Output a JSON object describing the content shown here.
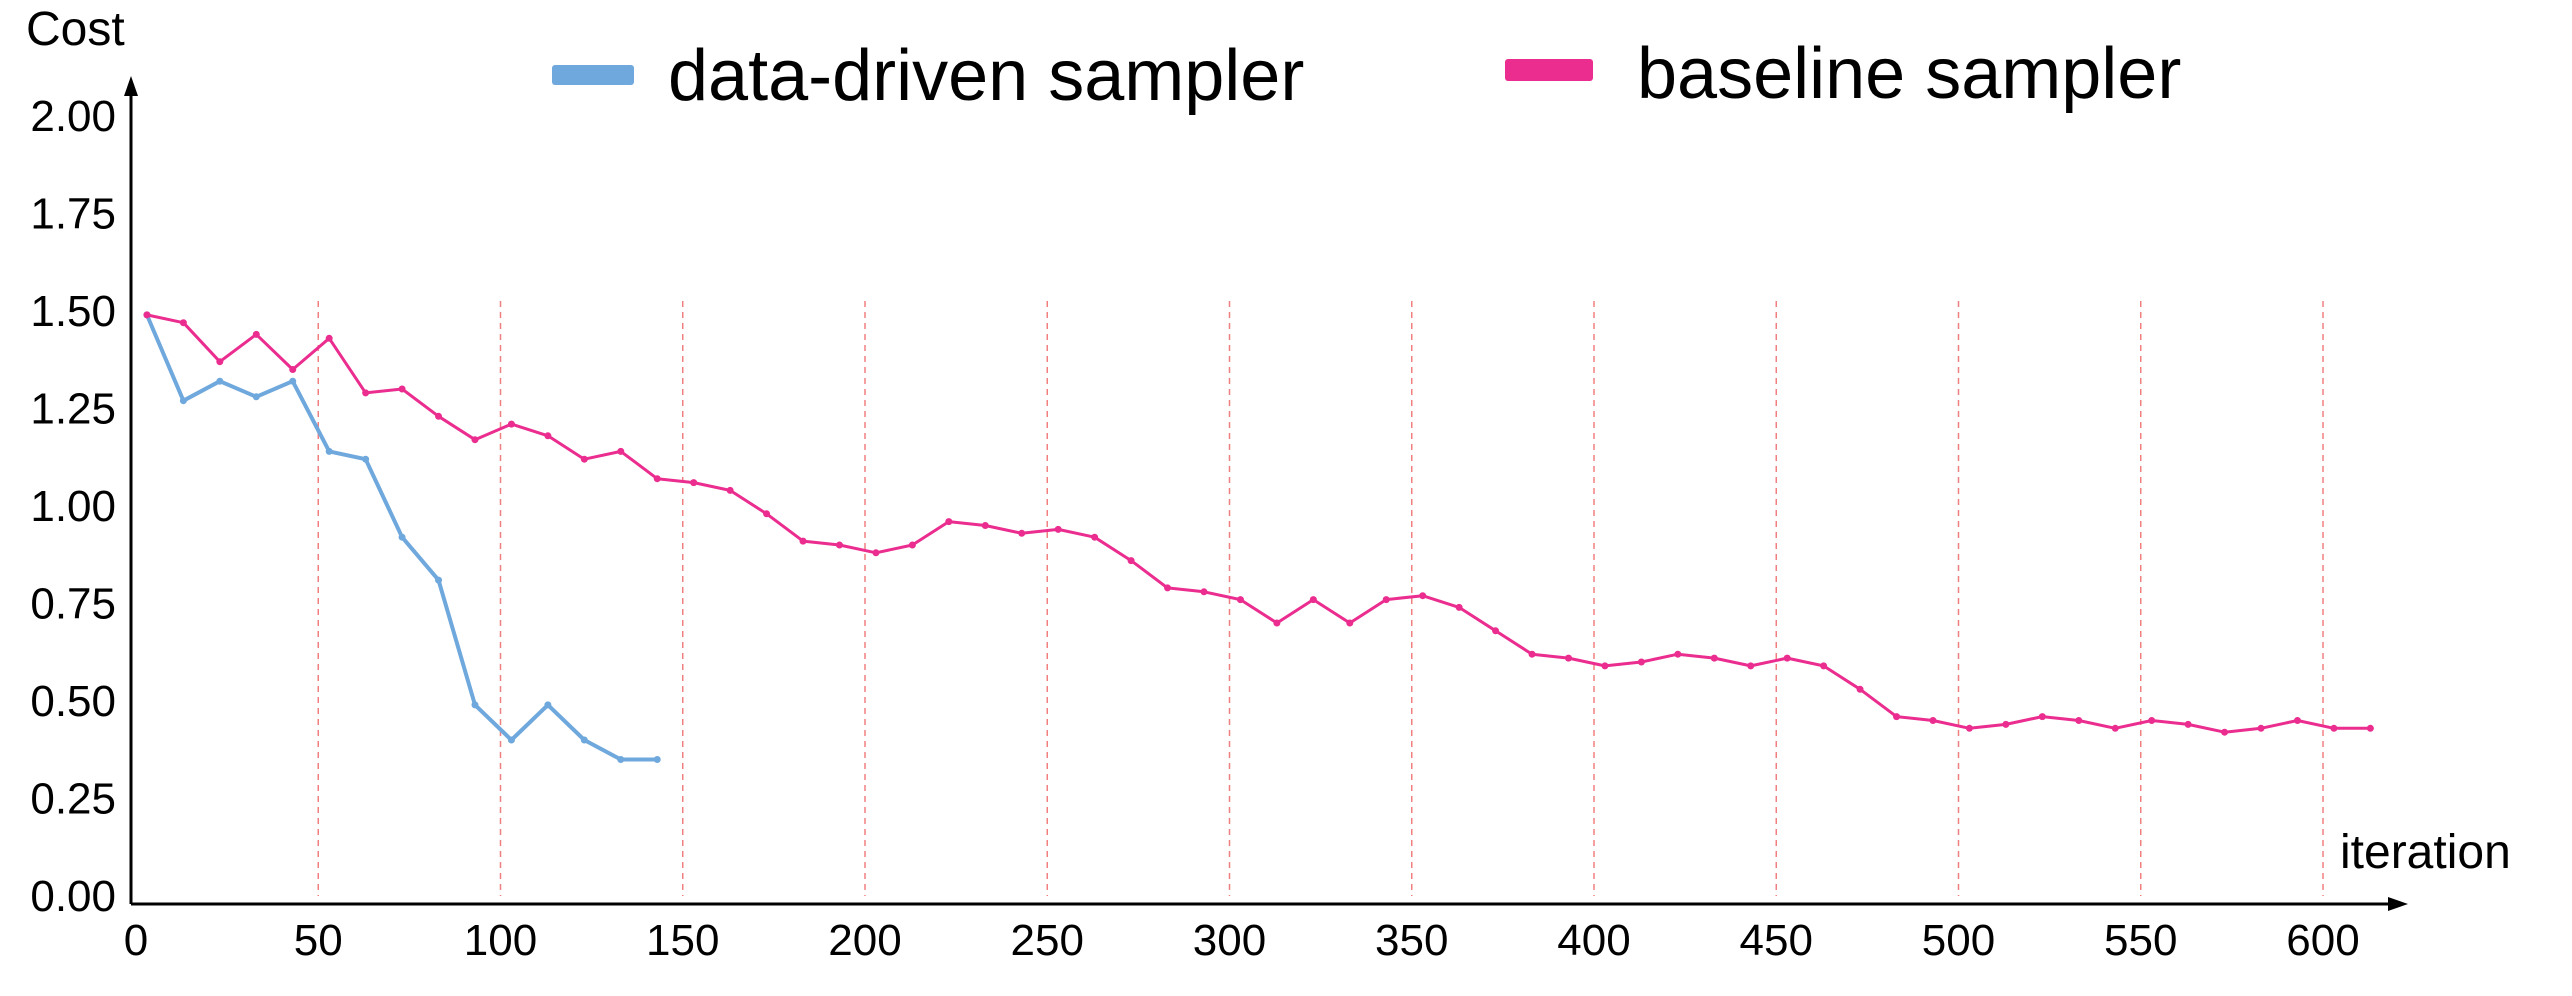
{
  "chart_data": {
    "type": "line",
    "title": "",
    "xlabel": "iteration",
    "ylabel": "Cost",
    "xlim": [
      0,
      620
    ],
    "ylim": [
      0,
      2.0
    ],
    "x_ticks": [
      "0",
      "50",
      "100",
      "150",
      "200",
      "250",
      "300",
      "350",
      "400",
      "450",
      "500",
      "550",
      "600"
    ],
    "y_ticks": [
      "0.00",
      "0.25",
      "0.50",
      "0.75",
      "1.00",
      "1.25",
      "1.50",
      "1.75",
      "2.00"
    ],
    "grid": "vertical dashed lines at x = 50, 100, ..., 600",
    "legend_position": "top",
    "series": [
      {
        "name": "data-driven sampler",
        "color": "#6fa8dc",
        "x": [
          3,
          13,
          23,
          33,
          43,
          53,
          63,
          73,
          83,
          93,
          103,
          113,
          123,
          133,
          143
        ],
        "y": [
          1.49,
          1.27,
          1.32,
          1.28,
          1.32,
          1.14,
          1.12,
          0.92,
          0.81,
          0.49,
          0.4,
          0.49,
          0.4,
          0.35,
          0.35
        ]
      },
      {
        "name": "baseline sampler",
        "color": "#ea2d8f",
        "x": [
          3,
          13,
          23,
          33,
          43,
          53,
          63,
          73,
          83,
          93,
          103,
          113,
          123,
          133,
          143,
          153,
          163,
          173,
          183,
          193,
          203,
          213,
          223,
          233,
          243,
          253,
          263,
          273,
          283,
          293,
          303,
          313,
          323,
          333,
          343,
          353,
          363,
          373,
          383,
          393,
          403,
          413,
          423,
          433,
          443,
          453,
          463,
          473,
          483,
          493,
          503,
          513,
          523,
          533,
          543,
          553,
          563,
          573,
          583,
          593,
          603,
          613
        ],
        "y": [
          1.49,
          1.47,
          1.37,
          1.44,
          1.35,
          1.43,
          1.29,
          1.3,
          1.23,
          1.17,
          1.21,
          1.18,
          1.12,
          1.14,
          1.07,
          1.06,
          1.04,
          0.98,
          0.91,
          0.9,
          0.88,
          0.9,
          0.96,
          0.95,
          0.93,
          0.94,
          0.92,
          0.86,
          0.79,
          0.78,
          0.76,
          0.7,
          0.76,
          0.7,
          0.76,
          0.77,
          0.74,
          0.68,
          0.62,
          0.61,
          0.59,
          0.6,
          0.62,
          0.61,
          0.59,
          0.61,
          0.59,
          0.53,
          0.46,
          0.45,
          0.43,
          0.44,
          0.46,
          0.45,
          0.43,
          0.45,
          0.44,
          0.42,
          0.43,
          0.45,
          0.43,
          0.43
        ]
      }
    ]
  }
}
